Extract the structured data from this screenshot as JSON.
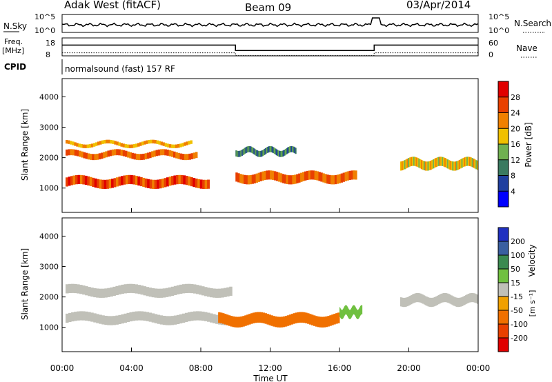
{
  "header": {
    "station": "Adak West (fitACF)",
    "beam": "Beam 09",
    "date": "03/Apr/2014"
  },
  "chart_data": [
    {
      "type": "line",
      "panel": "noise",
      "left_label": "N.Sky",
      "right_label": "N.Search",
      "yticks_left": [
        "10^5",
        "10^0"
      ],
      "yticks_right": [
        "10^5",
        "10^0"
      ],
      "grid": false
    },
    {
      "type": "line",
      "panel": "frequency",
      "left_label": "Freq.",
      "left_unit": "[MHz]",
      "right_label": "Nave",
      "yticks_left": [
        "18",
        "8"
      ],
      "yticks_right": [
        "60",
        "0"
      ],
      "freq_steps": [
        {
          "x_start": 0,
          "x_end": 10,
          "value": 14
        },
        {
          "x_start": 10,
          "x_end": 18,
          "value": 11
        },
        {
          "x_start": 18,
          "x_end": 24,
          "value": 14
        }
      ],
      "nave_steps": [
        {
          "x_start": 0,
          "x_end": 10,
          "value": 10
        },
        {
          "x_start": 10,
          "x_end": 18,
          "value": 1
        },
        {
          "x_start": 18,
          "x_end": 24,
          "value": 10
        }
      ],
      "grid": false
    },
    {
      "type": "heatmap",
      "panel": "cpid",
      "label": "CPID",
      "text": "normalsound (fast) 157 RF"
    },
    {
      "type": "heatmap",
      "panel": "power",
      "ylabel": "Slant Range [km]",
      "ylim": [
        200,
        4600
      ],
      "yticks": [
        1000,
        2000,
        3000,
        4000
      ],
      "xlim": [
        0,
        24
      ],
      "colorbar": {
        "label": "Power [dB]",
        "ticks": [
          4,
          8,
          12,
          16,
          20,
          24,
          28
        ],
        "colors": [
          "#0000ff",
          "#1f3f9f",
          "#3a7a60",
          "#70b050",
          "#f0c000",
          "#f08000",
          "#e84000",
          "#e00000"
        ]
      },
      "bands": [
        {
          "x_start": 0.2,
          "x_end": 8.5,
          "y_center": 1200,
          "width": 300,
          "level": 26
        },
        {
          "x_start": 0.2,
          "x_end": 7.8,
          "y_center": 2100,
          "width": 200,
          "level": 24
        },
        {
          "x_start": 0.2,
          "x_end": 7.5,
          "y_center": 2450,
          "width": 120,
          "level": 20
        },
        {
          "x_start": 10,
          "x_end": 17,
          "y_center": 1350,
          "width": 300,
          "level": 24
        },
        {
          "x_start": 10,
          "x_end": 13.5,
          "y_center": 2200,
          "width": 200,
          "level": 10
        },
        {
          "x_start": 19.5,
          "x_end": 24,
          "y_center": 1800,
          "width": 300,
          "level": 18
        }
      ]
    },
    {
      "type": "heatmap",
      "panel": "velocity",
      "ylabel": "Slant Range [km]",
      "ylim": [
        200,
        4600
      ],
      "yticks": [
        1000,
        2000,
        3000,
        4000
      ],
      "xlim": [
        0,
        24
      ],
      "xticks": [
        "00:00",
        "04:00",
        "08:00",
        "12:00",
        "16:00",
        "20:00",
        "00:00"
      ],
      "xlabel": "Time UT",
      "colorbar": {
        "label": "Velocity",
        "unit": "[m s⁻¹]",
        "ticks": [
          "200",
          "100",
          "50",
          "15",
          "-15",
          "-50",
          "-100",
          "-200"
        ],
        "colors": [
          "#2030c0",
          "#3a5fa0",
          "#3b8a50",
          "#70c040",
          "#c0c0b8",
          "#f0a000",
          "#f07000",
          "#e84000",
          "#e00000"
        ]
      },
      "bands": [
        {
          "x_start": 0.2,
          "x_end": 9.8,
          "y_center": 1300,
          "width": 300,
          "velocity": 0
        },
        {
          "x_start": 0.2,
          "x_end": 9.8,
          "y_center": 2200,
          "width": 300,
          "velocity": 0
        },
        {
          "x_start": 9,
          "x_end": 16,
          "y_center": 1250,
          "width": 350,
          "velocity": -60
        },
        {
          "x_start": 16,
          "x_end": 17.3,
          "y_center": 1500,
          "width": 300,
          "velocity": 30
        },
        {
          "x_start": 19.5,
          "x_end": 24,
          "y_center": 1900,
          "width": 300,
          "velocity": 0
        }
      ]
    }
  ]
}
